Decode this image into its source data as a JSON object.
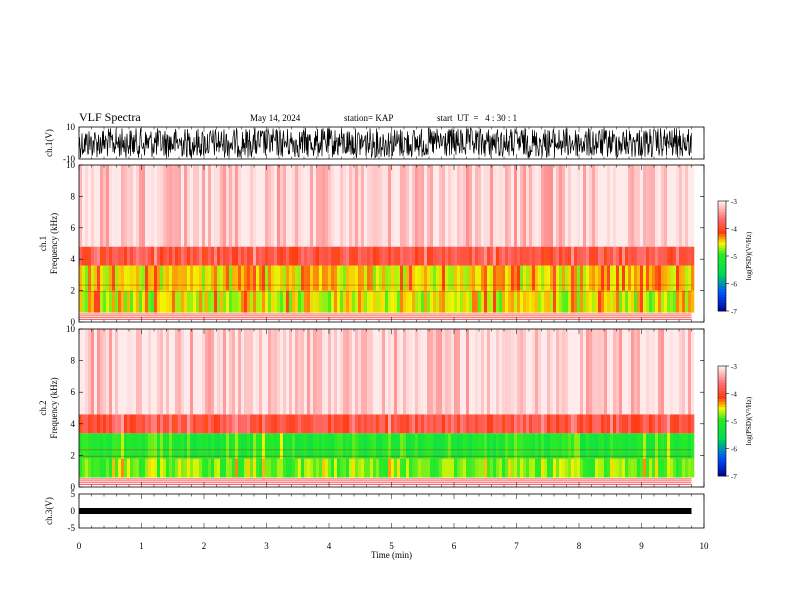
{
  "header": {
    "title": "VLF Spectra",
    "date": "May 14, 2024",
    "station": "station= KAP",
    "start": "start  UT  =   4 : 30 : 1"
  },
  "chart_data": [
    {
      "type": "line",
      "name": "ch1-waveform",
      "ylabel": "ch.1(V)",
      "yticks": [
        "10",
        "-10"
      ],
      "ylim": [
        -10,
        10
      ],
      "xlim": [
        0,
        10
      ],
      "data_span_min": [
        0,
        9.8
      ],
      "description_values": {
        "amplitude_peak_V": 10
      }
    },
    {
      "type": "heatmap",
      "name": "ch1-spectrogram",
      "ylabel": "ch.1\nFrequency (kHz)",
      "ylabel_line1": "ch.1",
      "ylabel_line2": "Frequency  (kHz)",
      "ylim": [
        0,
        10
      ],
      "yticks": [
        "0",
        "2",
        "4",
        "6",
        "8",
        "10"
      ],
      "xlim": [
        0,
        10
      ],
      "data_span_min": [
        0,
        9.8
      ],
      "bands_kHz": [
        {
          "from": 0.0,
          "to": 0.6,
          "level": "red-lines"
        },
        {
          "from": 0.6,
          "to": 2.0,
          "level": -4.6
        },
        {
          "from": 2.0,
          "to": 3.6,
          "level": -4.5
        },
        {
          "from": 3.6,
          "to": 4.8,
          "level": -3.9
        },
        {
          "from": 4.8,
          "to": 10.0,
          "level": -3.2
        }
      ],
      "colorbar": {
        "label": "log(PSD)(V²/Hz)",
        "ticks": [
          "-3",
          "-4",
          "-5",
          "-6",
          "-7"
        ],
        "range": [
          -7,
          -3
        ]
      }
    },
    {
      "type": "heatmap",
      "name": "ch2-spectrogram",
      "ylabel_line1": "ch.2",
      "ylabel_line2": "Frequency  (kHz)",
      "ylim": [
        0,
        10
      ],
      "yticks": [
        "0",
        "2",
        "4",
        "6",
        "8",
        "10"
      ],
      "xlim": [
        0,
        10
      ],
      "data_span_min": [
        0,
        9.8
      ],
      "bands_kHz": [
        {
          "from": 0.0,
          "to": 0.6,
          "level": "red-lines"
        },
        {
          "from": 0.6,
          "to": 1.8,
          "level": -4.8
        },
        {
          "from": 1.8,
          "to": 3.4,
          "level": -5.1
        },
        {
          "from": 3.4,
          "to": 4.6,
          "level": -3.9
        },
        {
          "from": 4.6,
          "to": 10.0,
          "level": -3.2
        }
      ],
      "colorbar": {
        "label": "log(PSD)(V²/Hz)",
        "ticks": [
          "-3",
          "-4",
          "-5",
          "-6",
          "-7"
        ],
        "range": [
          -7,
          -3
        ]
      }
    },
    {
      "type": "line",
      "name": "ch3-waveform",
      "ylabel": "ch.3(V)",
      "yticks": [
        "5",
        "0",
        "-5"
      ],
      "ylim": [
        -5,
        5
      ],
      "xlim": [
        0,
        10
      ],
      "data_span_min": [
        0,
        9.8
      ],
      "description_values": {
        "level_V": 0
      }
    }
  ],
  "xaxis": {
    "label": "Time  (min)",
    "ticks": [
      "0",
      "1",
      "2",
      "3",
      "4",
      "5",
      "6",
      "7",
      "8",
      "9",
      "10"
    ]
  },
  "colors": {
    "low": "#0000a0",
    "mid": "#00e040",
    "yellow": "#f0f000",
    "red": "#ff2020",
    "high": "#ffffff"
  }
}
